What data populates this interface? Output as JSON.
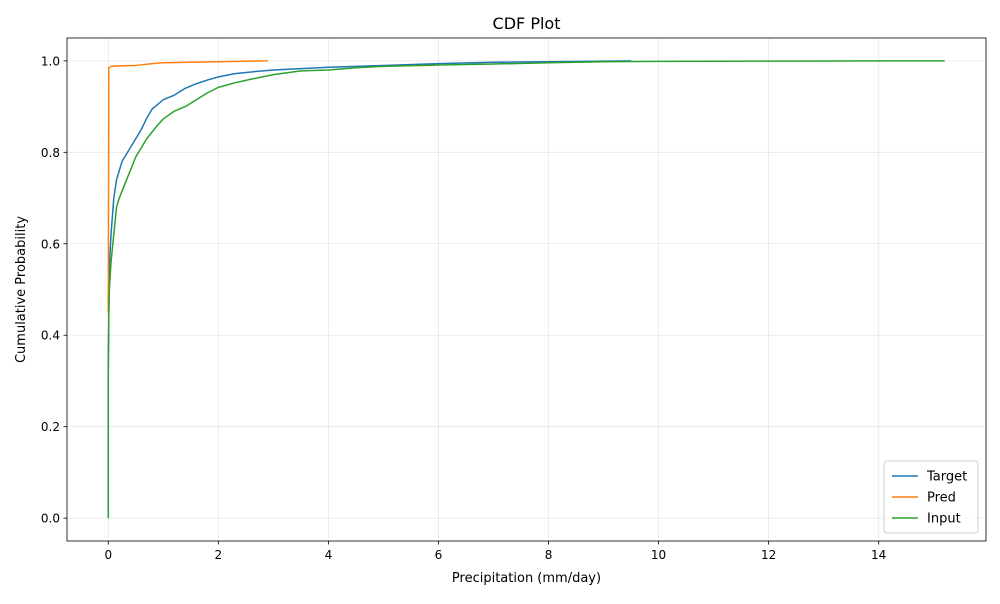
{
  "chart_data": {
    "type": "line",
    "title": "CDF Plot",
    "xlabel": "Precipitation (mm/day)",
    "ylabel": "Cumulative Probability",
    "xlim": [
      -0.75,
      15.95
    ],
    "ylim": [
      -0.05,
      1.05
    ],
    "x_ticks": [
      0,
      2,
      4,
      6,
      8,
      10,
      12,
      14
    ],
    "y_ticks": [
      0.0,
      0.2,
      0.4,
      0.6,
      0.8,
      1.0
    ],
    "x_tick_labels": [
      "0",
      "2",
      "4",
      "6",
      "8",
      "10",
      "12",
      "14"
    ],
    "y_tick_labels": [
      "0.0",
      "0.2",
      "0.4",
      "0.6",
      "0.8",
      "1.0"
    ],
    "grid": true,
    "legend_position": "lower-right",
    "series": [
      {
        "name": "Target",
        "color": "#1f77b4",
        "points": [
          [
            0,
            0
          ],
          [
            0,
            0.3
          ],
          [
            0.01,
            0.45
          ],
          [
            0.02,
            0.55
          ],
          [
            0.05,
            0.62
          ],
          [
            0.1,
            0.7
          ],
          [
            0.15,
            0.74
          ],
          [
            0.2,
            0.76
          ],
          [
            0.25,
            0.78
          ],
          [
            0.3,
            0.79
          ],
          [
            0.4,
            0.81
          ],
          [
            0.5,
            0.83
          ],
          [
            0.6,
            0.85
          ],
          [
            0.7,
            0.875
          ],
          [
            0.8,
            0.895
          ],
          [
            0.9,
            0.905
          ],
          [
            1.0,
            0.915
          ],
          [
            1.2,
            0.925
          ],
          [
            1.4,
            0.94
          ],
          [
            1.6,
            0.95
          ],
          [
            1.8,
            0.958
          ],
          [
            2.0,
            0.965
          ],
          [
            2.3,
            0.972
          ],
          [
            2.7,
            0.977
          ],
          [
            3.0,
            0.98
          ],
          [
            3.5,
            0.983
          ],
          [
            4.0,
            0.986
          ],
          [
            4.5,
            0.988
          ],
          [
            5.0,
            0.99
          ],
          [
            6.0,
            0.994
          ],
          [
            7.0,
            0.997
          ],
          [
            8.0,
            0.998
          ],
          [
            9.5,
            1.0
          ]
        ]
      },
      {
        "name": "Pred",
        "color": "#ff7f0e",
        "points": [
          [
            0,
            0.45
          ],
          [
            0.005,
            0.7
          ],
          [
            0.01,
            0.985
          ],
          [
            0.05,
            0.988
          ],
          [
            0.2,
            0.989
          ],
          [
            0.5,
            0.99
          ],
          [
            0.8,
            0.994
          ],
          [
            1.0,
            0.996
          ],
          [
            1.5,
            0.997
          ],
          [
            2.0,
            0.998
          ],
          [
            2.3,
            0.999
          ],
          [
            2.9,
            1.0
          ]
        ]
      },
      {
        "name": "Input",
        "color": "#2ca02c",
        "points": [
          [
            0,
            0
          ],
          [
            0,
            0.35
          ],
          [
            0.01,
            0.45
          ],
          [
            0.02,
            0.5
          ],
          [
            0.05,
            0.56
          ],
          [
            0.1,
            0.62
          ],
          [
            0.15,
            0.68
          ],
          [
            0.2,
            0.7
          ],
          [
            0.3,
            0.73
          ],
          [
            0.4,
            0.76
          ],
          [
            0.5,
            0.79
          ],
          [
            0.6,
            0.81
          ],
          [
            0.7,
            0.83
          ],
          [
            0.8,
            0.845
          ],
          [
            0.9,
            0.86
          ],
          [
            1.0,
            0.873
          ],
          [
            1.2,
            0.89
          ],
          [
            1.4,
            0.9
          ],
          [
            1.6,
            0.915
          ],
          [
            1.8,
            0.93
          ],
          [
            2.0,
            0.942
          ],
          [
            2.3,
            0.952
          ],
          [
            2.6,
            0.96
          ],
          [
            3.0,
            0.97
          ],
          [
            3.5,
            0.978
          ],
          [
            4.0,
            0.98
          ],
          [
            4.5,
            0.985
          ],
          [
            5.0,
            0.988
          ],
          [
            6.0,
            0.991
          ],
          [
            7.0,
            0.993
          ],
          [
            8.0,
            0.996
          ],
          [
            9.0,
            0.998
          ],
          [
            10.0,
            0.999
          ],
          [
            12.0,
            0.9995
          ],
          [
            15.2,
            1.0
          ]
        ]
      }
    ]
  }
}
